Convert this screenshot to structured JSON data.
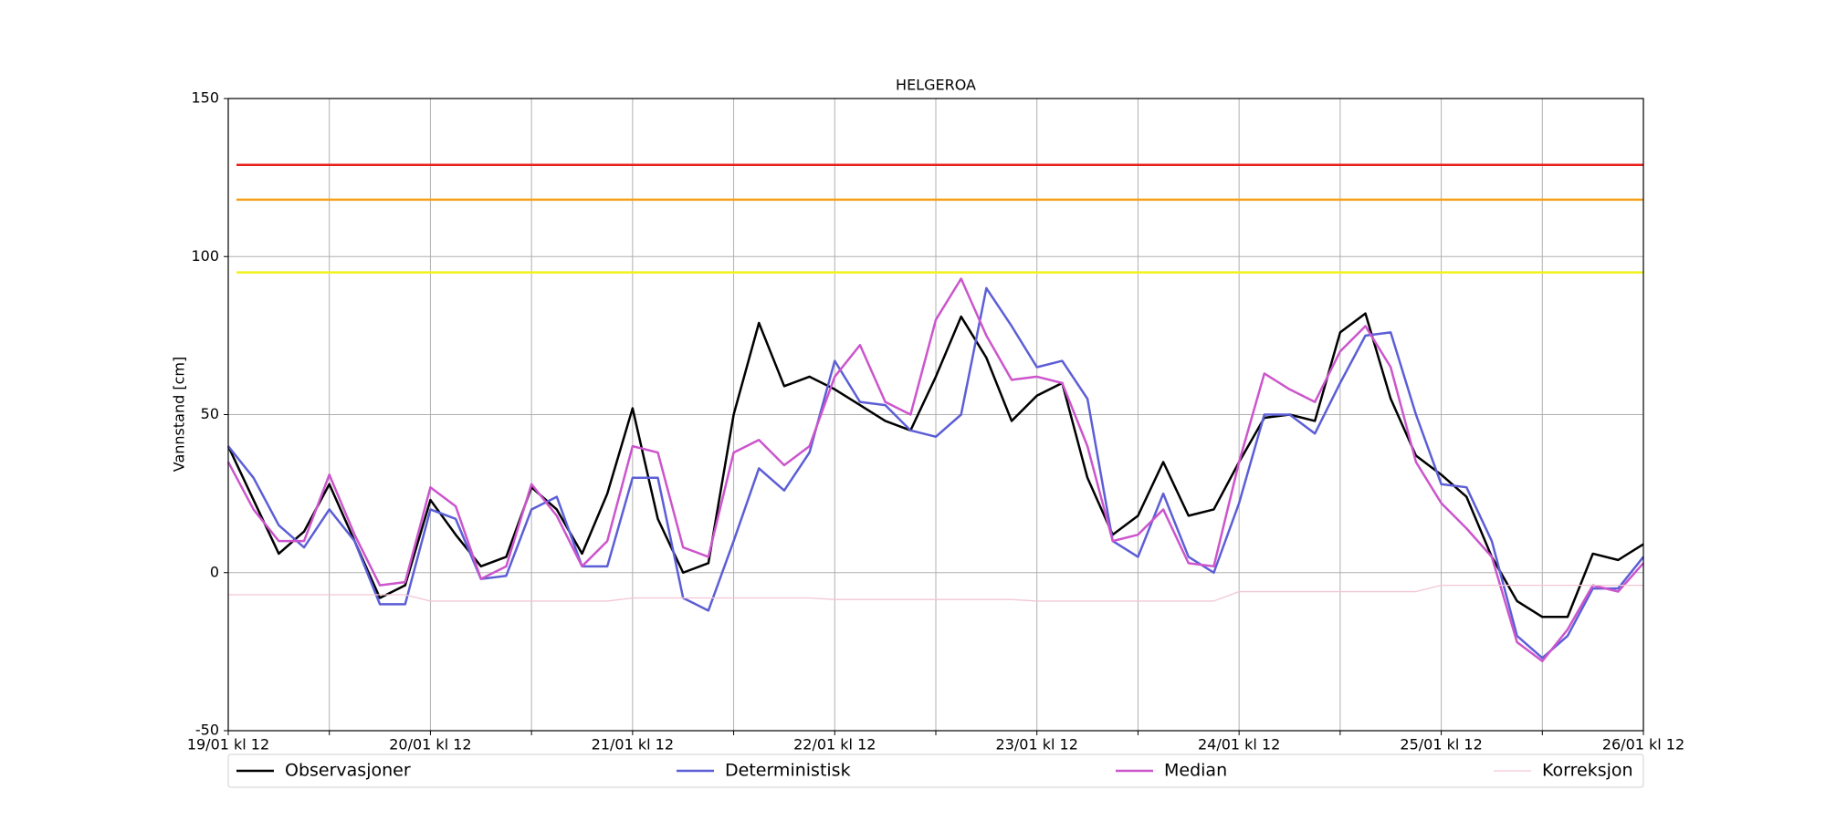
{
  "chart_data": {
    "type": "line",
    "title": "HELGEROA",
    "y_label": "Vannstand [cm]",
    "x": [
      0,
      3,
      6,
      9,
      12,
      15,
      18,
      21,
      24,
      27,
      30,
      33,
      36,
      39,
      42,
      45,
      48,
      51,
      54,
      57,
      60,
      63,
      66,
      69,
      72,
      75,
      78,
      81,
      84,
      87,
      90,
      93,
      96,
      99,
      102,
      105,
      108,
      111,
      114,
      117,
      120,
      123,
      126,
      129,
      132,
      135,
      138,
      141,
      144,
      147,
      150,
      153,
      156,
      159,
      162,
      165,
      168
    ],
    "xlim": [
      0,
      168
    ],
    "xticks": [
      {
        "value": 0,
        "label": "19/01 kl 12"
      },
      {
        "value": 24,
        "label": "20/01 kl 12"
      },
      {
        "value": 48,
        "label": "21/01 kl 12"
      },
      {
        "value": 72,
        "label": "22/01 kl 12"
      },
      {
        "value": 96,
        "label": "23/01 kl 12"
      },
      {
        "value": 120,
        "label": "24/01 kl 12"
      },
      {
        "value": 144,
        "label": "25/01 kl 12"
      },
      {
        "value": 168,
        "label": "26/01 kl 12"
      }
    ],
    "xminorticks": [
      12,
      36,
      60,
      84,
      108,
      132,
      156
    ],
    "ylim": [
      -50,
      150
    ],
    "yticks": [
      -50,
      0,
      50,
      100,
      150
    ],
    "grid": true,
    "thresholds": [
      {
        "value": 129,
        "color": "#e8201c"
      },
      {
        "value": 118,
        "color": "#f5a01a"
      },
      {
        "value": 95,
        "color": "#f2f21a"
      }
    ],
    "series": [
      {
        "name": "Observasjoner",
        "color": "#000000",
        "values": [
          40,
          23,
          6,
          13,
          28,
          10,
          -8,
          -4,
          23,
          12,
          2,
          5,
          27,
          20,
          6,
          25,
          52,
          17,
          0,
          3,
          50,
          79,
          59,
          62,
          58,
          53,
          48,
          45,
          62,
          81,
          68,
          48,
          56,
          60,
          30,
          12,
          18,
          35,
          18,
          20,
          35,
          49,
          50,
          48,
          76,
          82,
          55,
          37,
          31,
          24,
          5,
          -9,
          -14,
          -14,
          6,
          4,
          9
        ]
      },
      {
        "name": "Deterministisk",
        "color": "#5c5ed6",
        "values": [
          40,
          30,
          15,
          8,
          20,
          10,
          -10,
          -10,
          20,
          17,
          -2,
          -1,
          20,
          24,
          2,
          2,
          30,
          30,
          -8,
          -12,
          10,
          33,
          26,
          38,
          67,
          54,
          53,
          45,
          43,
          50,
          90,
          78,
          65,
          67,
          55,
          10,
          5,
          25,
          5,
          0,
          22,
          50,
          50,
          44,
          60,
          75,
          76,
          50,
          28,
          27,
          10,
          -20,
          -27,
          -20,
          -5,
          -5,
          5
        ]
      },
      {
        "name": "Median",
        "color": "#cc55cc",
        "values": [
          35,
          20,
          10,
          10,
          31,
          12,
          -4,
          -3,
          27,
          21,
          -2,
          2,
          28,
          18,
          2,
          10,
          40,
          38,
          8,
          5,
          38,
          42,
          34,
          40,
          62,
          72,
          54,
          50,
          80,
          93,
          75,
          61,
          62,
          60,
          40,
          10,
          12,
          20,
          3,
          2,
          35,
          63,
          58,
          54,
          70,
          78,
          65,
          35,
          22,
          14,
          5,
          -22,
          -28,
          -18,
          -4,
          -6,
          3
        ]
      },
      {
        "name": "Korreksjon",
        "color": "#f2c6d4",
        "values": [
          -7,
          -7,
          -7,
          -7,
          -7,
          -7,
          -7,
          -7,
          -9,
          -9,
          -9,
          -9,
          -9,
          -9,
          -9,
          -9,
          -8,
          -8,
          -8,
          -8,
          -8,
          -8,
          -8,
          -8,
          -8.5,
          -8.5,
          -8.5,
          -8.5,
          -8.5,
          -8.5,
          -8.5,
          -8.5,
          -9,
          -9,
          -9,
          -9,
          -9,
          -9,
          -9,
          -9,
          -6,
          -6,
          -6,
          -6,
          -6,
          -6,
          -6,
          -6,
          -4,
          -4,
          -4,
          -4,
          -4,
          -4,
          -4,
          -4,
          -4
        ]
      }
    ]
  }
}
